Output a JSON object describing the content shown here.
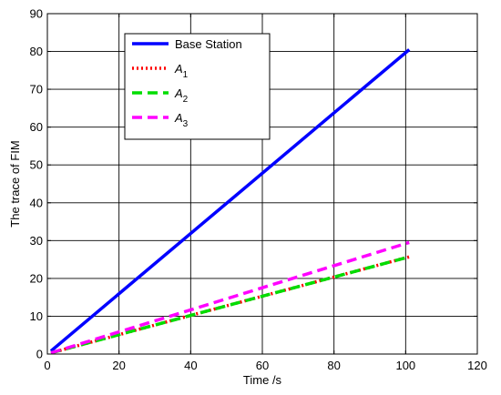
{
  "chart_data": {
    "type": "line",
    "xlabel": "Time /s",
    "ylabel": "The trace of FIM",
    "xlim": [
      0,
      120
    ],
    "ylim": [
      0,
      90
    ],
    "xticks": [
      0,
      20,
      40,
      60,
      80,
      100,
      120
    ],
    "yticks": [
      0,
      10,
      20,
      30,
      40,
      50,
      60,
      70,
      80,
      90
    ],
    "grid": true,
    "legend_position": "top-left",
    "series": [
      {
        "name": "Base Station",
        "legend_main": "Base Station",
        "legend_sub": "",
        "color": "#0000ff",
        "dash": "solid",
        "x": [
          1,
          101
        ],
        "y": [
          0.8,
          80.5
        ]
      },
      {
        "name": "A1",
        "legend_main": "A",
        "legend_sub": "1",
        "color": "#ff0000",
        "dash": "dotted",
        "x": [
          1,
          101
        ],
        "y": [
          0.3,
          25.7
        ]
      },
      {
        "name": "A2",
        "legend_main": "A",
        "legend_sub": "2",
        "color": "#00dd00",
        "dash": "dashed",
        "x": [
          1,
          101
        ],
        "y": [
          0.3,
          25.7
        ]
      },
      {
        "name": "A3",
        "legend_main": "A",
        "legend_sub": "3",
        "color": "#ff00ff",
        "dash": "dashed",
        "x": [
          1,
          101
        ],
        "y": [
          0.3,
          29.5
        ]
      }
    ]
  }
}
